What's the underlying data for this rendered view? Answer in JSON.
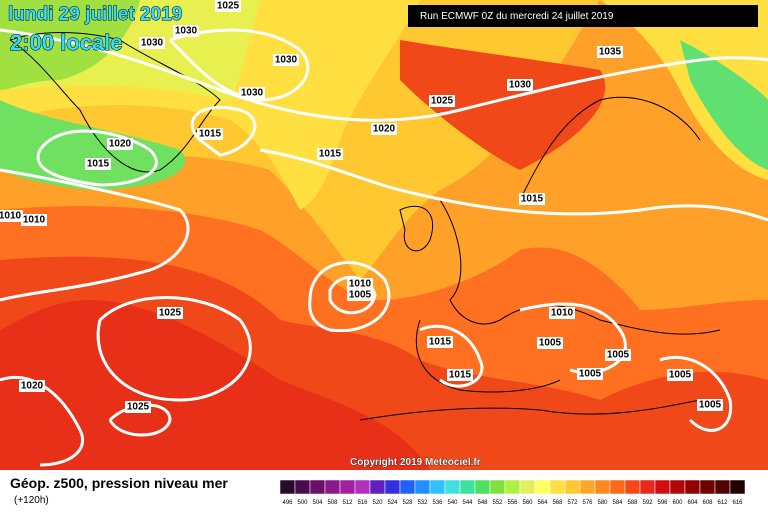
{
  "header": {
    "date": "lundi 29 juillet 2019",
    "time": "2:00 locale",
    "run": "Run ECMWF 0Z du mercredi 24 juillet 2019"
  },
  "isobar_labels": [
    "1025",
    "1030",
    "1030",
    "1030",
    "1030",
    "1015",
    "1020",
    "1015",
    "1015",
    "1020",
    "1025",
    "1030",
    "1035",
    "1015",
    "1010",
    "1010",
    "1010",
    "1005",
    "1025",
    "1015",
    "1015",
    "1010",
    "1005",
    "1005",
    "1005",
    "1005",
    "1005",
    "1020",
    "1025"
  ],
  "footer": {
    "copyright": "Copyright 2019 Meteociel.fr",
    "field": "Géop. z500, pression niveau mer",
    "lead": "(+120h)"
  },
  "scale": [
    {
      "value": 496,
      "color": "#2a0a2a"
    },
    {
      "value": 500,
      "color": "#4b0a4b"
    },
    {
      "value": 504,
      "color": "#6b0f6b"
    },
    {
      "value": 508,
      "color": "#8a1a8a"
    },
    {
      "value": 512,
      "color": "#a020a0"
    },
    {
      "value": 516,
      "color": "#b030c0"
    },
    {
      "value": 520,
      "color": "#6020c0"
    },
    {
      "value": 524,
      "color": "#3030e0"
    },
    {
      "value": 528,
      "color": "#2060ff"
    },
    {
      "value": 532,
      "color": "#2090ff"
    },
    {
      "value": 536,
      "color": "#30c0ff"
    },
    {
      "value": 540,
      "color": "#40e0e0"
    },
    {
      "value": 544,
      "color": "#40e0a0"
    },
    {
      "value": 548,
      "color": "#50e060"
    },
    {
      "value": 552,
      "color": "#80e040"
    },
    {
      "value": 556,
      "color": "#b0f040"
    },
    {
      "value": 560,
      "color": "#e0f060"
    },
    {
      "value": 564,
      "color": "#ffff60"
    },
    {
      "value": 568,
      "color": "#ffe040"
    },
    {
      "value": 572,
      "color": "#ffc830"
    },
    {
      "value": 576,
      "color": "#ffa828"
    },
    {
      "value": 580,
      "color": "#ff8820"
    },
    {
      "value": 584,
      "color": "#ff6818"
    },
    {
      "value": 588,
      "color": "#f84818"
    },
    {
      "value": 592,
      "color": "#e82818"
    },
    {
      "value": 596,
      "color": "#d01010"
    },
    {
      "value": 600,
      "color": "#b00808"
    },
    {
      "value": 604,
      "color": "#900000"
    },
    {
      "value": 608,
      "color": "#700000"
    },
    {
      "value": 612,
      "color": "#500000"
    },
    {
      "value": 616,
      "color": "#200000"
    }
  ]
}
